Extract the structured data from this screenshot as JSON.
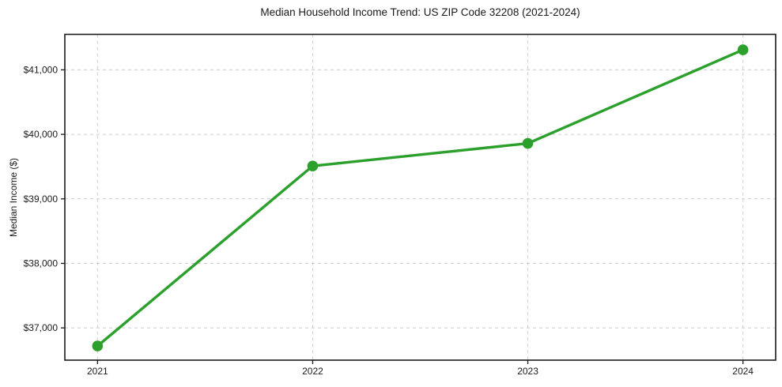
{
  "chart_data": {
    "type": "line",
    "title": "Median Household Income Trend: US ZIP Code 32208 (2021-2024)",
    "xlabel": "",
    "ylabel": "Median Income ($)",
    "categories": [
      "2021",
      "2022",
      "2023",
      "2024"
    ],
    "series": [
      {
        "name": "Median Household Income",
        "values": [
          36720,
          39510,
          39860,
          41310
        ]
      }
    ],
    "yticks": [
      {
        "value": 37000,
        "label": "$37,000"
      },
      {
        "value": 38000,
        "label": "$38,000"
      },
      {
        "value": 39000,
        "label": "$39,000"
      },
      {
        "value": 40000,
        "label": "$40,000"
      },
      {
        "value": 41000,
        "label": "$41,000"
      }
    ],
    "ylim": [
      36500,
      41550
    ],
    "x_margin_frac": 0.046,
    "grid": true,
    "grid_style": "dashed",
    "legend_position": "none",
    "line_color": "#2ca02c",
    "marker_color": "#2ca02c",
    "grid_color": "#cccccc",
    "axis_color": "#1a1a1a",
    "background_color": "#ffffff",
    "line_width": 3.4,
    "marker_radius": 6.8
  }
}
